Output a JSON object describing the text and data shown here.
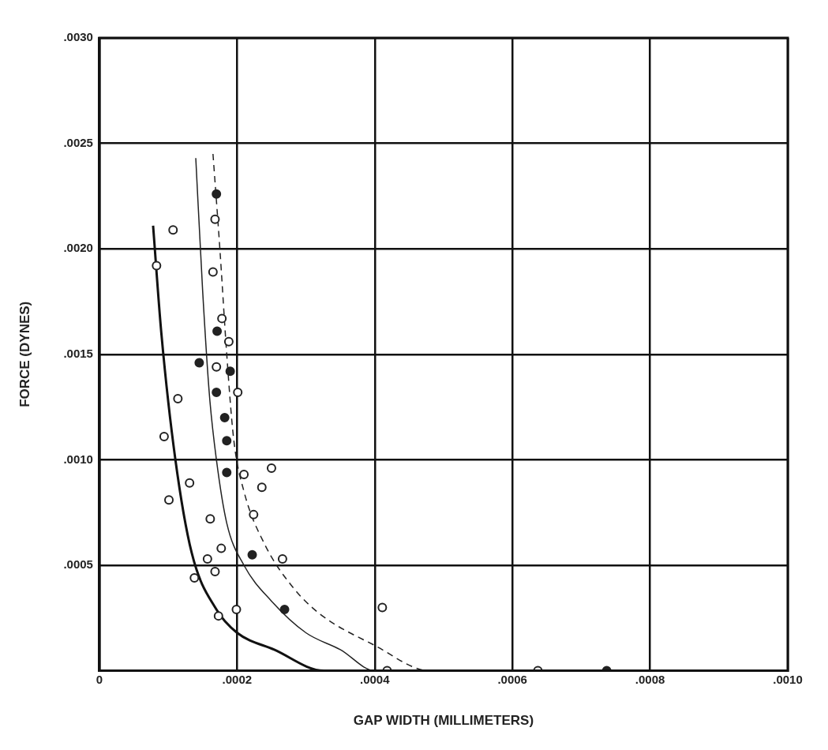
{
  "chart_data": {
    "type": "scatter",
    "xlabel": "GAP WIDTH (MILLIMETERS)",
    "ylabel": "FORCE (DYNES)",
    "xlim": [
      0,
      0.001
    ],
    "xticks": [
      {
        "value": 0,
        "label": "0"
      },
      {
        "value": 0.0002,
        "label": ".0002"
      },
      {
        "value": 0.0004,
        "label": ".0004"
      },
      {
        "value": 0.0006,
        "label": ".0006"
      },
      {
        "value": 0.0008,
        "label": ".0008"
      },
      {
        "value": 0.001,
        "label": ".0010"
      }
    ],
    "ylim": [
      0,
      0.003
    ],
    "yticks": [
      {
        "value": 0,
        "label": null
      },
      {
        "value": 0.0005,
        "label": ".0005"
      },
      {
        "value": 0.001,
        "label": ".0010"
      },
      {
        "value": 0.0015,
        "label": ".0015"
      },
      {
        "value": 0.002,
        "label": ".0020"
      },
      {
        "value": 0.0025,
        "label": ".0025"
      },
      {
        "value": 0.003,
        "label": ".0030"
      }
    ],
    "grid": true,
    "legend": false,
    "series": [
      {
        "marker": "circle",
        "color": "#222222",
        "x": [
          8.3e-05,
          0.000107,
          0.000114,
          9.4e-05,
          0.000101,
          0.000131,
          0.000161,
          0.000177,
          0.000157,
          0.000168,
          0.000138,
          0.000173,
          0.000199,
          0.00021,
          0.000224,
          0.000236,
          0.00025,
          0.000411,
          0.000418,
          0.000637,
          0.000168,
          0.000165,
          0.000178,
          0.000188,
          0.00017,
          0.000201,
          0.000266
        ],
        "values": [
          0.00192,
          0.00209,
          0.00129,
          0.00111,
          0.00081,
          0.00089,
          0.00072,
          0.00058,
          0.00053,
          0.00047,
          0.00044,
          0.00026,
          0.00029,
          0.00093,
          0.00074,
          0.00087,
          0.00096,
          0.0003,
          0,
          0,
          0.00214,
          0.00189,
          0.00167,
          0.00156,
          0.00144,
          0.00132,
          0.00053
        ]
      },
      {
        "marker": "circle",
        "color": "#222222",
        "x": [
          0.00017,
          0.000171,
          0.000145,
          0.00017,
          0.00019,
          0.000182,
          0.000185,
          0.000185,
          0.000222,
          0.000269,
          0.000737
        ],
        "values": [
          0.00226,
          0.00161,
          0.00146,
          0.00132,
          0.00142,
          0.0012,
          0.00109,
          0.00094,
          0.00055,
          0.00029,
          0
        ]
      },
      {
        "type": "line",
        "marker": "none",
        "line_style": "solid",
        "color": "#111111",
        "x": [
          7.8e-05,
          9e-05,
          0.00011,
          0.000134,
          0.00017,
          0.0002,
          0.000254,
          0.000326,
          0.00042
        ],
        "values": [
          0.00211,
          0.0016,
          0.00101,
          0.00056,
          0.00029,
          0.00018,
          0.0001,
          0,
          0
        ]
      },
      {
        "type": "line",
        "marker": "none",
        "line_style": "solid",
        "color": "#222222",
        "x": [
          0.00014,
          0.00015,
          0.00016,
          0.00017,
          0.000185,
          0.00021,
          0.00025,
          0.0003,
          0.00035,
          0.0004,
          0.00045
        ],
        "values": [
          0.00243,
          0.0018,
          0.0013,
          0.001,
          0.0007,
          0.0005,
          0.00033,
          0.00018,
          0.0001,
          0,
          0
        ]
      },
      {
        "type": "line",
        "marker": "none",
        "line_style": "dashed",
        "color": "#222222",
        "x": [
          0.000165,
          0.000175,
          0.000185,
          0.000195,
          0.00021,
          0.00024,
          0.00028,
          0.00032,
          0.0004,
          0.00048,
          0.00056
        ],
        "values": [
          0.00245,
          0.002,
          0.0015,
          0.0011,
          0.00085,
          0.0006,
          0.0004,
          0.00027,
          0.00012,
          0,
          0
        ]
      }
    ]
  }
}
